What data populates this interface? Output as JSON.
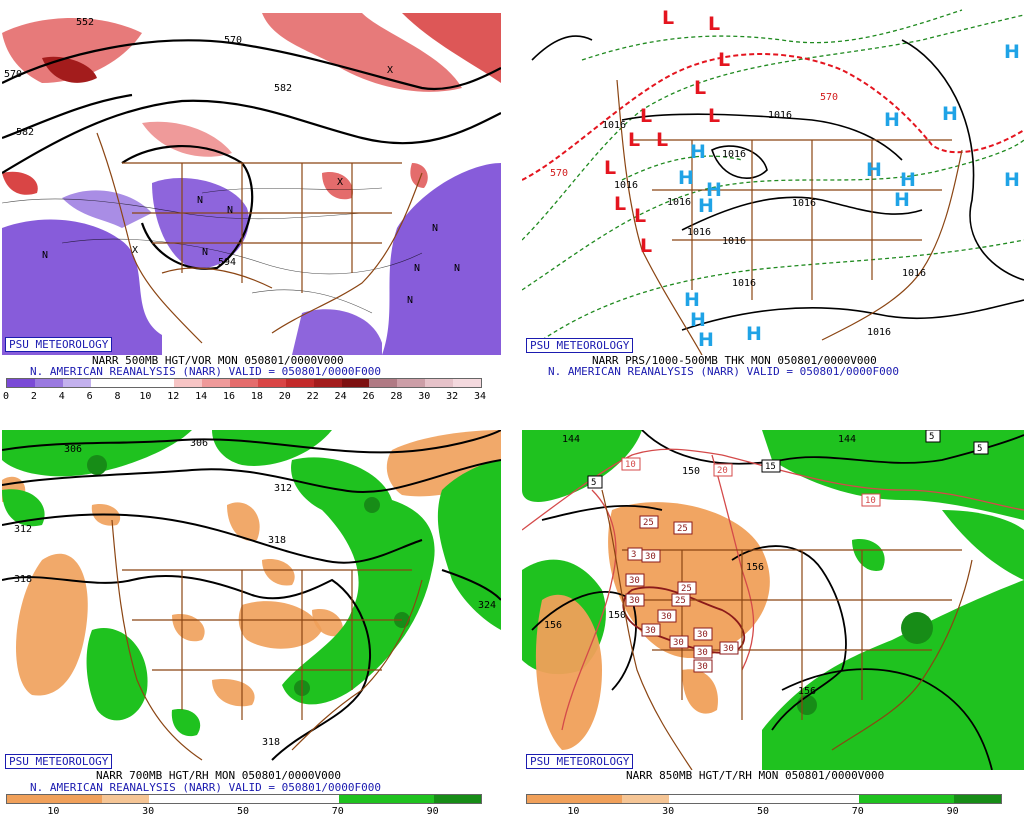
{
  "panels": {
    "tl": {
      "badge": "PSU METEOROLOGY",
      "caption1": "NARR 500MB HGT/VOR MON 050801/0000V000",
      "caption2": "N. AMERICAN REANALYSIS (NARR) VALID = 050801/0000F000",
      "colorbar_colors": [
        "#7a4ad6",
        "#9a79e0",
        "#c3b1ee",
        "#ffffff",
        "#ffffff",
        "#ffffff",
        "#f7c5c5",
        "#ef9a9a",
        "#e46c6c",
        "#d94545",
        "#c32a2a",
        "#a31c1c",
        "#7d1010",
        "#b07a84",
        "#cc9ea7",
        "#e6c2c9",
        "#f4d9de"
      ],
      "colorbar_ticks": [
        "0",
        "2",
        "4",
        "6",
        "8",
        "10",
        "12",
        "14",
        "16",
        "18",
        "20",
        "22",
        "24",
        "26",
        "28",
        "30",
        "32",
        "34"
      ],
      "contour_labels": [
        "570",
        "582",
        "570",
        "582",
        "594",
        "552"
      ],
      "n_markers": [
        "N",
        "N",
        "N",
        "N",
        "N",
        "N",
        "N",
        "N"
      ],
      "x_markers": [
        "X",
        "X",
        "X"
      ]
    },
    "tr": {
      "badge": "PSU METEOROLOGY",
      "caption1": "NARR PRS/1000-500MB THK MON 050801/0000V000",
      "caption2": "N. AMERICAN REANALYSIS (NARR) VALID = 050801/0000F000",
      "contour_labels": [
        "1016",
        "1016",
        "1016",
        "1016",
        "1016",
        "1016",
        "1016",
        "1016",
        "1016",
        "1016",
        "1016"
      ],
      "thickness_labels": [
        "570",
        "570"
      ],
      "low_symbol": "L",
      "high_symbol": "H",
      "colors": {
        "low": "#e4151f",
        "high": "#1fa3e6",
        "thickness_warm": "#e4151f",
        "thickness_cool": "#1f8a1f",
        "pressure": "#000000"
      }
    },
    "bl": {
      "badge": "PSU METEOROLOGY",
      "caption1": "NARR 700MB HGT/RH MON 050801/0000V000",
      "caption2": "N. AMERICAN REANALYSIS (NARR) VALID = 050801/0000F000",
      "colorbar_colors": [
        "#f0a05a",
        "#f0a05a",
        "#f5c595",
        "#ffffff",
        "#ffffff",
        "#ffffff",
        "#ffffff",
        "#1fc21f",
        "#1fc21f",
        "#178c17"
      ],
      "colorbar_ticks": [
        "10",
        "30",
        "50",
        "70",
        "90"
      ],
      "contour_labels": [
        "306",
        "306",
        "312",
        "312",
        "318",
        "318",
        "324",
        "318"
      ]
    },
    "br": {
      "badge": "PSU METEOROLOGY",
      "caption1": "NARR 850MB HGT/T/RH MON 050801/0000V000",
      "colorbar_colors": [
        "#f0a05a",
        "#f0a05a",
        "#f5c595",
        "#ffffff",
        "#ffffff",
        "#ffffff",
        "#ffffff",
        "#1fc21f",
        "#1fc21f",
        "#178c17"
      ],
      "colorbar_ticks": [
        "10",
        "30",
        "50",
        "70",
        "90"
      ],
      "contour_labels": [
        "144",
        "144",
        "150",
        "156",
        "156",
        "156",
        "150"
      ],
      "temp_labels_red": [
        "10",
        "20",
        "10"
      ],
      "temp_labels_black": [
        "5",
        "5",
        "5",
        "15"
      ],
      "temp_labels_dark": [
        "25",
        "25",
        "25",
        "3",
        "30",
        "30",
        "25",
        "30",
        "30",
        "30",
        "30",
        "30",
        "30",
        "30",
        "30"
      ]
    }
  }
}
